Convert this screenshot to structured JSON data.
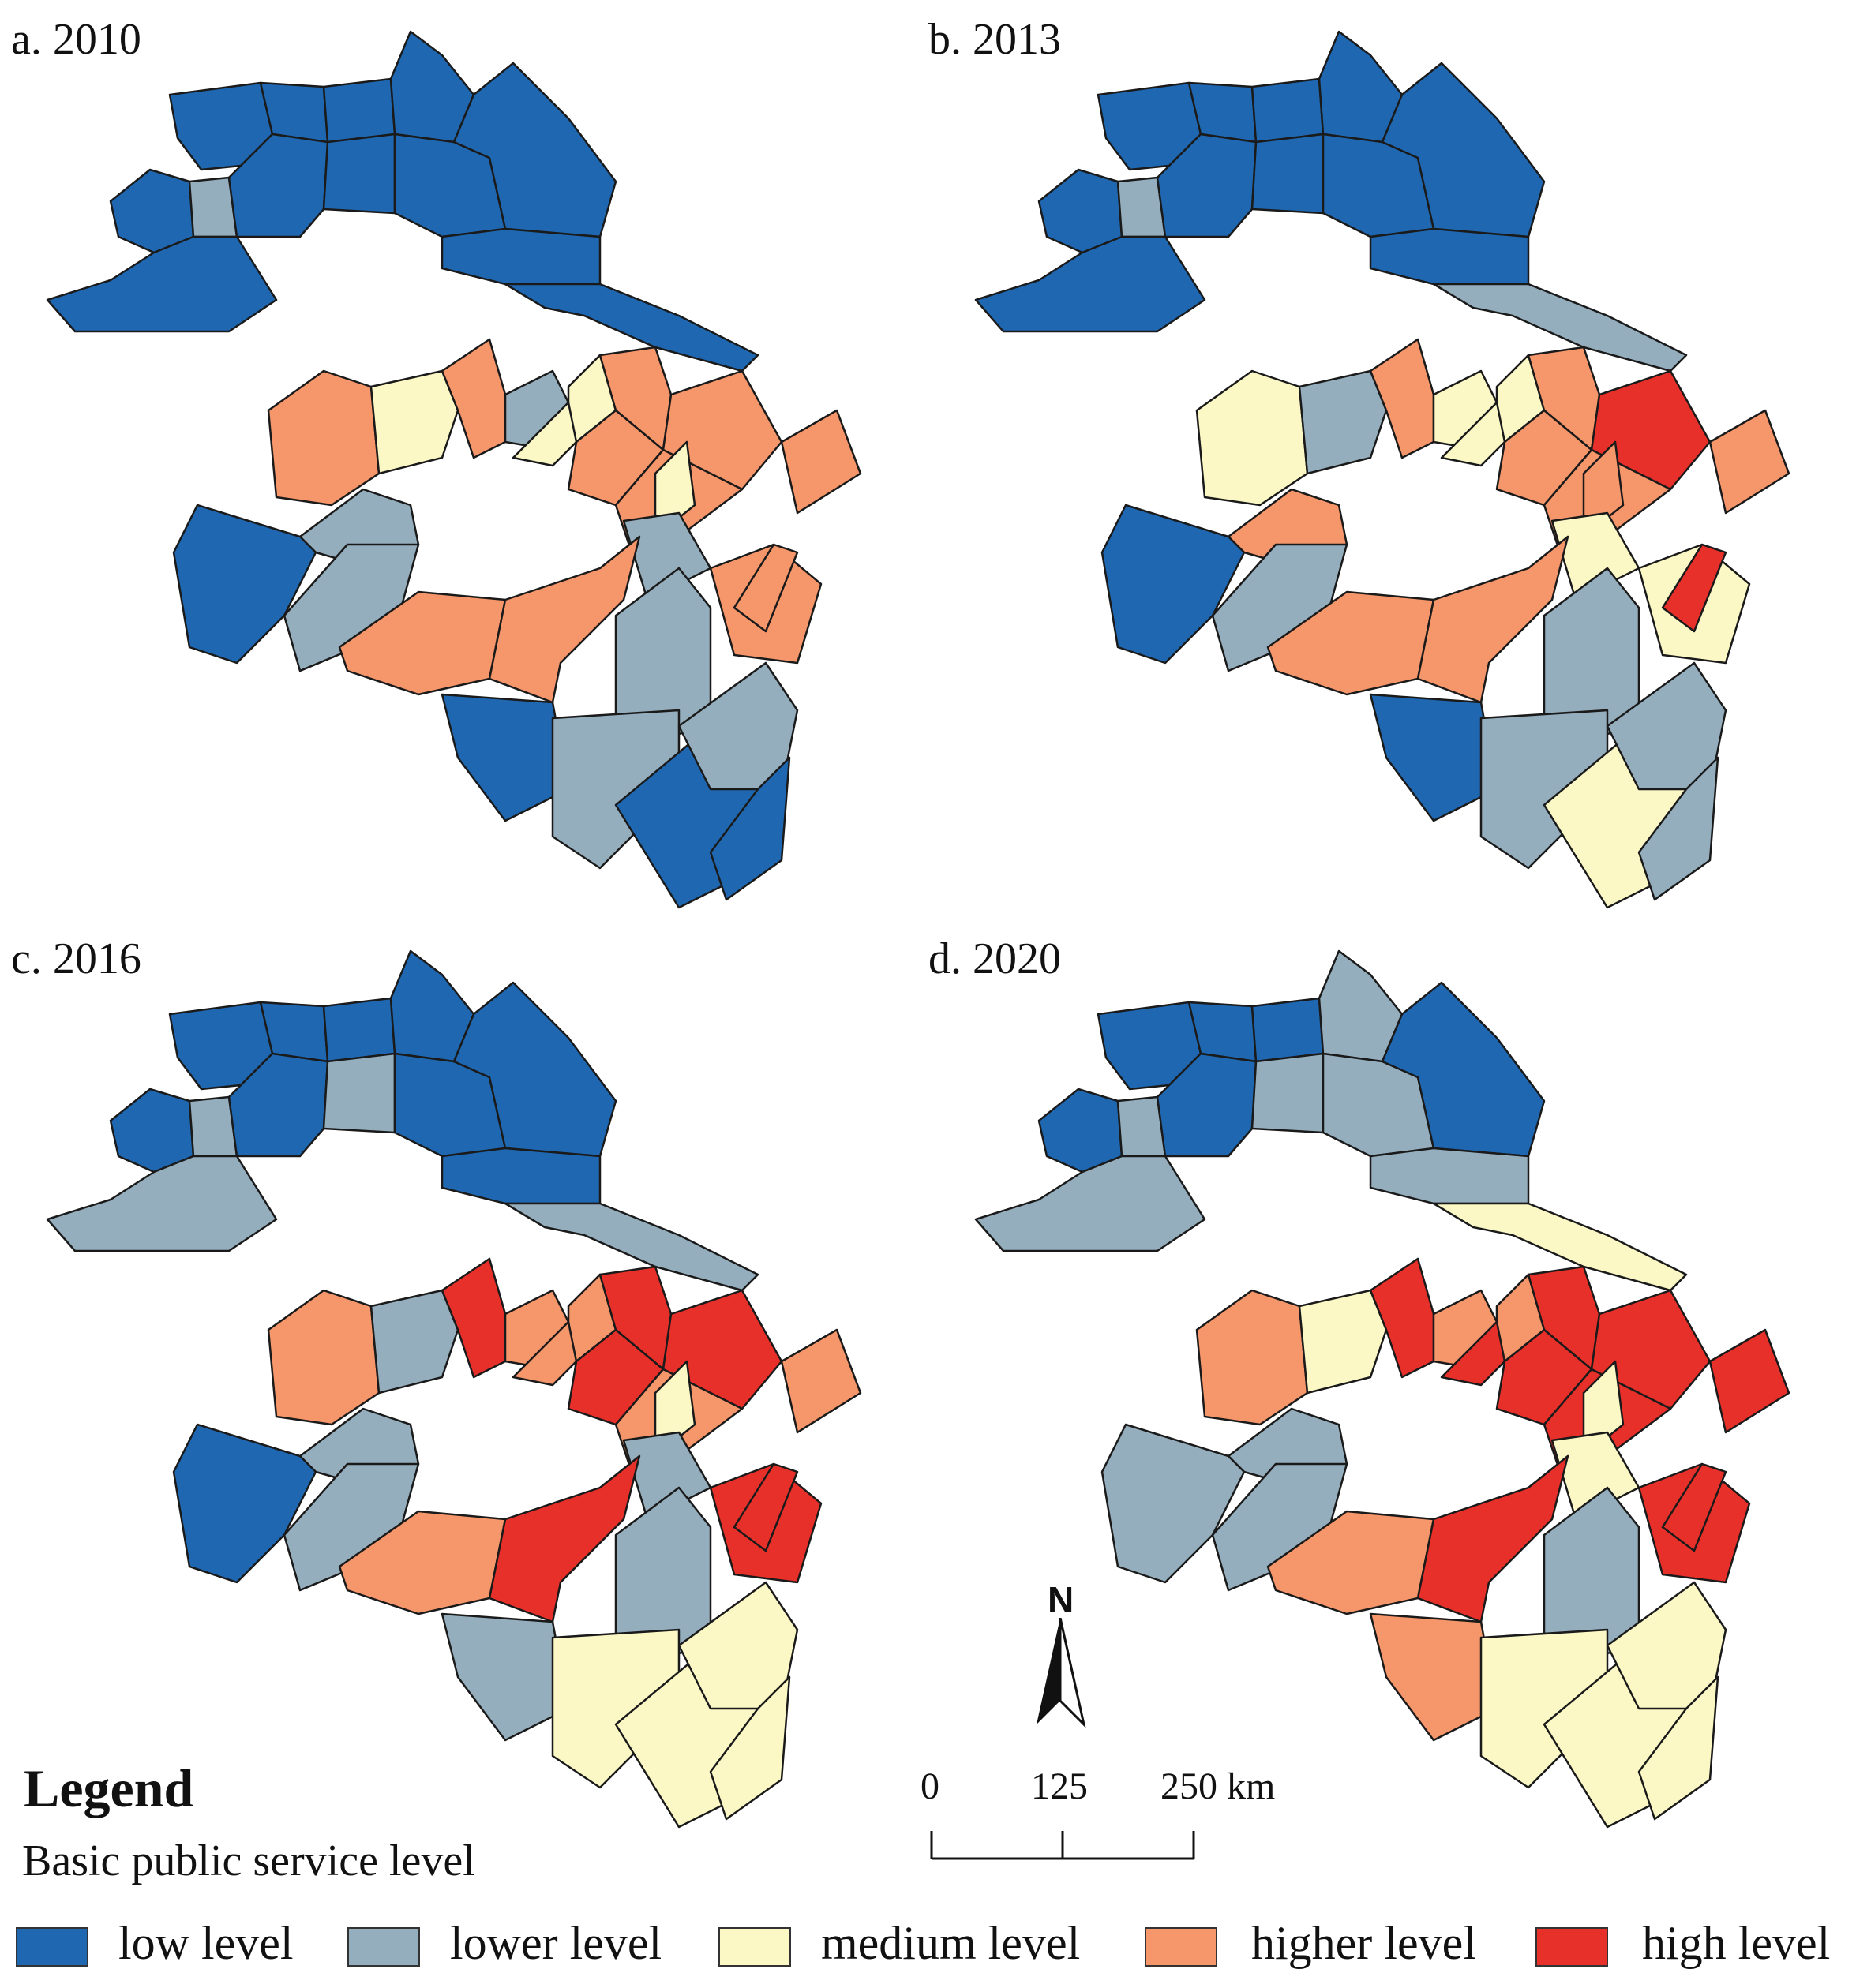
{
  "panels": [
    {
      "id": "a",
      "label": "a. 2010",
      "region_levels": [
        "low",
        "low",
        "low",
        "low",
        "low",
        "lower",
        "low",
        "low",
        "low",
        "low",
        "low",
        "low",
        "low",
        "higher",
        "medium",
        "higher",
        "lower",
        "medium",
        "medium",
        "higher",
        "higher",
        "higher",
        "higher",
        "lower",
        "medium",
        "lower",
        "low",
        "lower",
        "higher",
        "higher",
        "higher",
        "lower",
        "low",
        "lower",
        "low",
        "lower",
        "low",
        "higher",
        "higher"
      ]
    },
    {
      "id": "b",
      "label": "b. 2013",
      "region_levels": [
        "low",
        "low",
        "low",
        "low",
        "low",
        "lower",
        "low",
        "low",
        "low",
        "low",
        "low",
        "low",
        "lower",
        "medium",
        "lower",
        "higher",
        "medium",
        "medium",
        "medium",
        "higher",
        "higher",
        "high",
        "higher",
        "higher",
        "higher",
        "lower",
        "low",
        "medium",
        "higher",
        "higher",
        "medium",
        "lower",
        "low",
        "lower",
        "medium",
        "lower",
        "lower",
        "higher",
        "high"
      ]
    },
    {
      "id": "c",
      "label": "c. 2016",
      "region_levels": [
        "low",
        "low",
        "low",
        "low",
        "low",
        "lower",
        "low",
        "lower",
        "low",
        "low",
        "low",
        "lower",
        "lower",
        "higher",
        "lower",
        "high",
        "higher",
        "higher",
        "higher",
        "high",
        "high",
        "high",
        "higher",
        "lower",
        "medium",
        "lower",
        "low",
        "lower",
        "higher",
        "high",
        "high",
        "lower",
        "lower",
        "medium",
        "medium",
        "medium",
        "medium",
        "higher",
        "high"
      ]
    },
    {
      "id": "d",
      "label": "d. 2020",
      "region_levels": [
        "low",
        "low",
        "low",
        "lower",
        "low",
        "lower",
        "low",
        "lower",
        "lower",
        "low",
        "lower",
        "lower",
        "medium",
        "higher",
        "medium",
        "high",
        "higher",
        "higher",
        "high",
        "high",
        "high",
        "high",
        "high",
        "lower",
        "medium",
        "lower",
        "lower",
        "medium",
        "higher",
        "high",
        "high",
        "lower",
        "higher",
        "medium",
        "medium",
        "medium",
        "medium",
        "high",
        "high"
      ]
    }
  ],
  "legend": {
    "title": "Legend",
    "subtitle": "Basic public service level",
    "items": [
      {
        "key": "low",
        "label": "low level",
        "color": "#1f68b1"
      },
      {
        "key": "lower",
        "label": "lower level",
        "color": "#95aebd"
      },
      {
        "key": "medium",
        "label": "medium level",
        "color": "#fbf8c6"
      },
      {
        "key": "higher",
        "label": "higher level",
        "color": "#f5966b"
      },
      {
        "key": "high",
        "label": "high level",
        "color": "#e8302a"
      }
    ]
  },
  "north_arrow": {
    "letter": "N"
  },
  "scale_bar": {
    "ticks": [
      "0",
      "125",
      "250 km"
    ]
  }
}
